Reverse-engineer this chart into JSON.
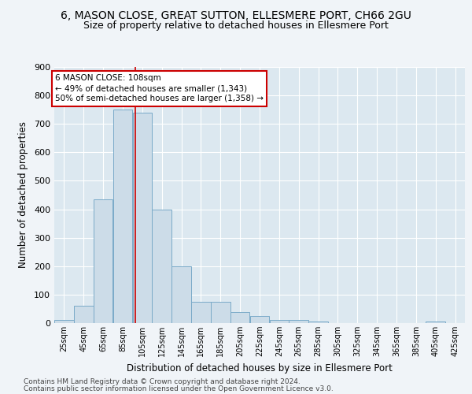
{
  "title1": "6, MASON CLOSE, GREAT SUTTON, ELLESMERE PORT, CH66 2GU",
  "title2": "Size of property relative to detached houses in Ellesmere Port",
  "xlabel": "Distribution of detached houses by size in Ellesmere Port",
  "ylabel": "Number of detached properties",
  "footer1": "Contains HM Land Registry data © Crown copyright and database right 2024.",
  "footer2": "Contains public sector information licensed under the Open Government Licence v3.0.",
  "bins": [
    25,
    45,
    65,
    85,
    105,
    125,
    145,
    165,
    185,
    205,
    225,
    245,
    265,
    285,
    305,
    325,
    345,
    365,
    385,
    405,
    425
  ],
  "values": [
    10,
    60,
    435,
    750,
    740,
    400,
    200,
    75,
    75,
    40,
    25,
    10,
    10,
    5,
    0,
    0,
    0,
    0,
    0,
    5
  ],
  "bar_color": "#ccdce8",
  "bar_edge_color": "#7aaac8",
  "property_size": 108,
  "vline_color": "#cc0000",
  "annotation_line1": "6 MASON CLOSE: 108sqm",
  "annotation_line2": "← 49% of detached houses are smaller (1,343)",
  "annotation_line3": "50% of semi-detached houses are larger (1,358) →",
  "annotation_box_color": "#ffffff",
  "annotation_box_edge_color": "#cc0000",
  "ylim": [
    0,
    900
  ],
  "yticks": [
    0,
    100,
    200,
    300,
    400,
    500,
    600,
    700,
    800,
    900
  ],
  "bg_color": "#dce8f0",
  "fig_bg_color": "#f0f4f8",
  "grid_color": "#ffffff",
  "title1_fontsize": 10,
  "title2_fontsize": 9,
  "footer_fontsize": 6.5
}
